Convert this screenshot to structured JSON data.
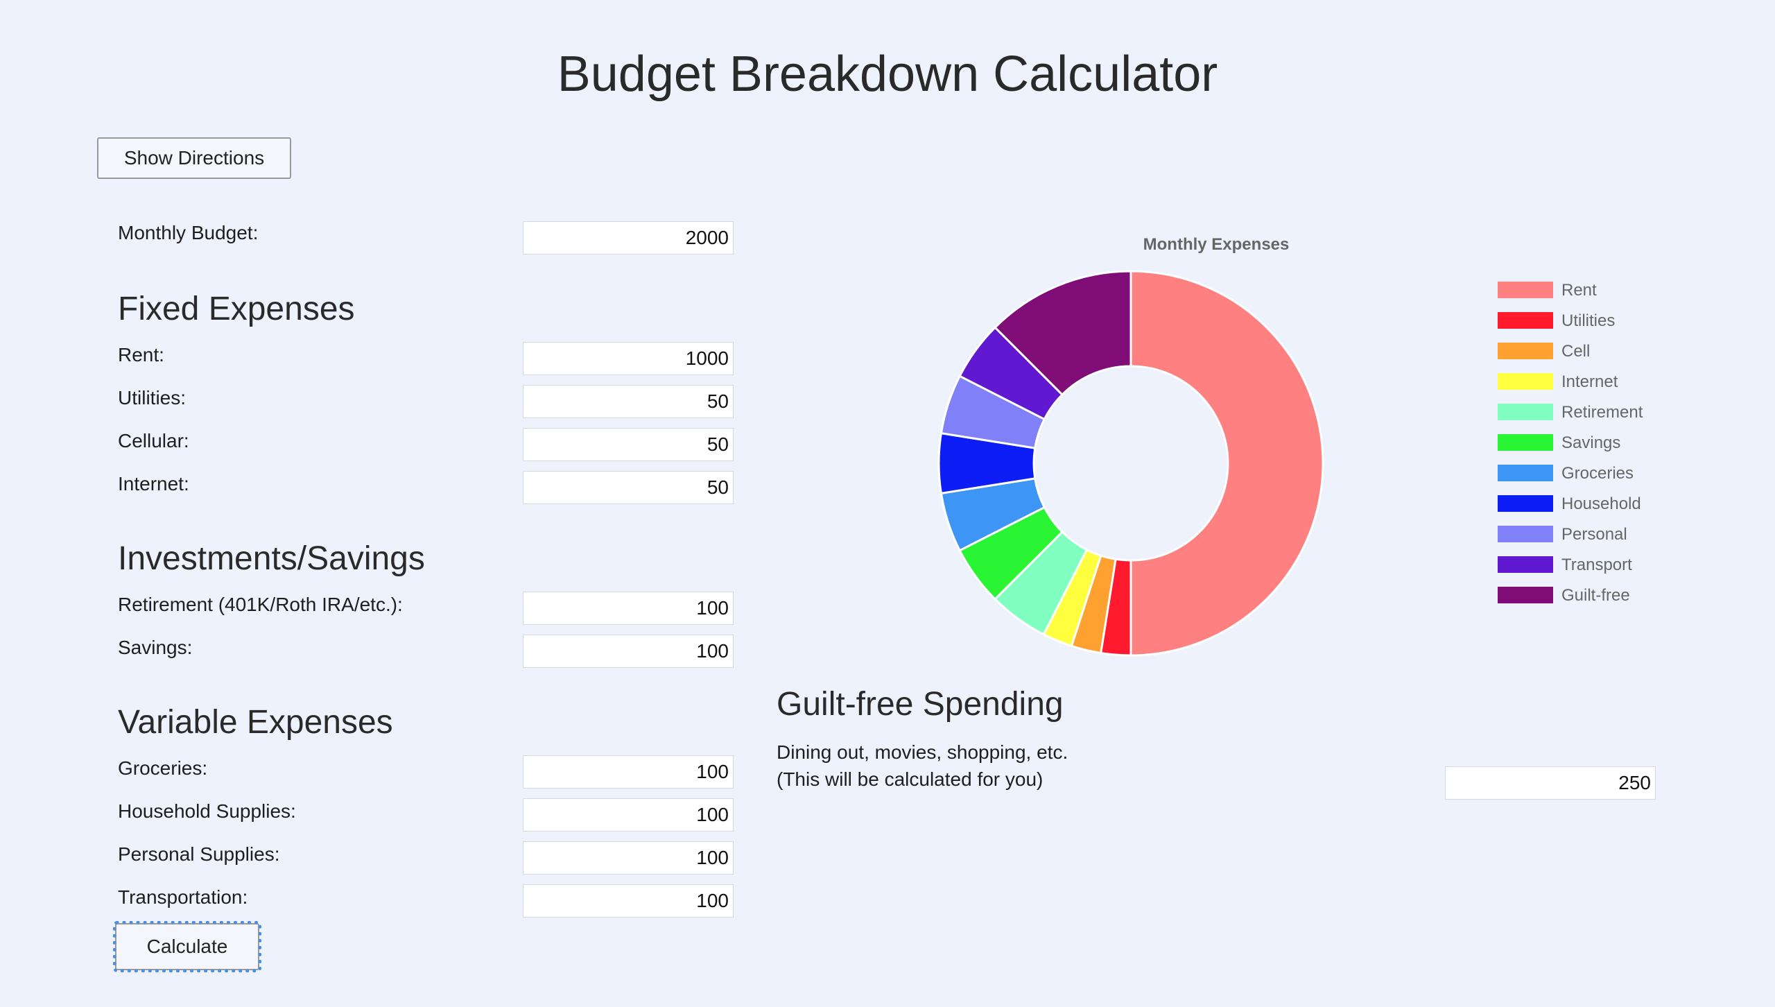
{
  "header": {
    "title": "Budget Breakdown Calculator"
  },
  "buttons": {
    "directions": "Show Directions",
    "calculate": "Calculate"
  },
  "budget": {
    "label": "Monthly Budget:",
    "value": "2000"
  },
  "fixed": {
    "heading": "Fixed Expenses",
    "rent": {
      "label": "Rent:",
      "value": "1000"
    },
    "utilities": {
      "label": "Utilities:",
      "value": "50"
    },
    "cellular": {
      "label": "Cellular:",
      "value": "50"
    },
    "internet": {
      "label": "Internet:",
      "value": "50"
    }
  },
  "investments": {
    "heading": "Investments/Savings",
    "retirement": {
      "label": "Retirement (401K/Roth IRA/etc.):",
      "value": "100"
    },
    "savings": {
      "label": "Savings:",
      "value": "100"
    }
  },
  "variable": {
    "heading": "Variable Expenses",
    "groceries": {
      "label": "Groceries:",
      "value": "100"
    },
    "household": {
      "label": "Household Supplies:",
      "value": "100"
    },
    "personal": {
      "label": "Personal Supplies:",
      "value": "100"
    },
    "transportation": {
      "label": "Transportation:",
      "value": "100"
    }
  },
  "guiltfree": {
    "heading": "Guilt-free Spending",
    "desc1": "Dining out, movies, shopping, etc.",
    "desc2": "(This will be calculated for you)",
    "value": "250"
  },
  "chart_data": {
    "type": "pie",
    "variant": "doughnut",
    "title": "Monthly Expenses",
    "legend_position": "right",
    "categories": [
      "Rent",
      "Utilities",
      "Cell",
      "Internet",
      "Retirement",
      "Savings",
      "Groceries",
      "Household",
      "Personal",
      "Transport",
      "Guilt-free"
    ],
    "values": [
      1000,
      50,
      50,
      50,
      100,
      100,
      100,
      100,
      100,
      100,
      250
    ],
    "colors": [
      "#ff8080",
      "#ff1a2e",
      "#ffa130",
      "#ffff40",
      "#80ffc0",
      "#29f535",
      "#3d96f5",
      "#0c1ef5",
      "#8080f8",
      "#6018d0",
      "#800c78"
    ]
  }
}
